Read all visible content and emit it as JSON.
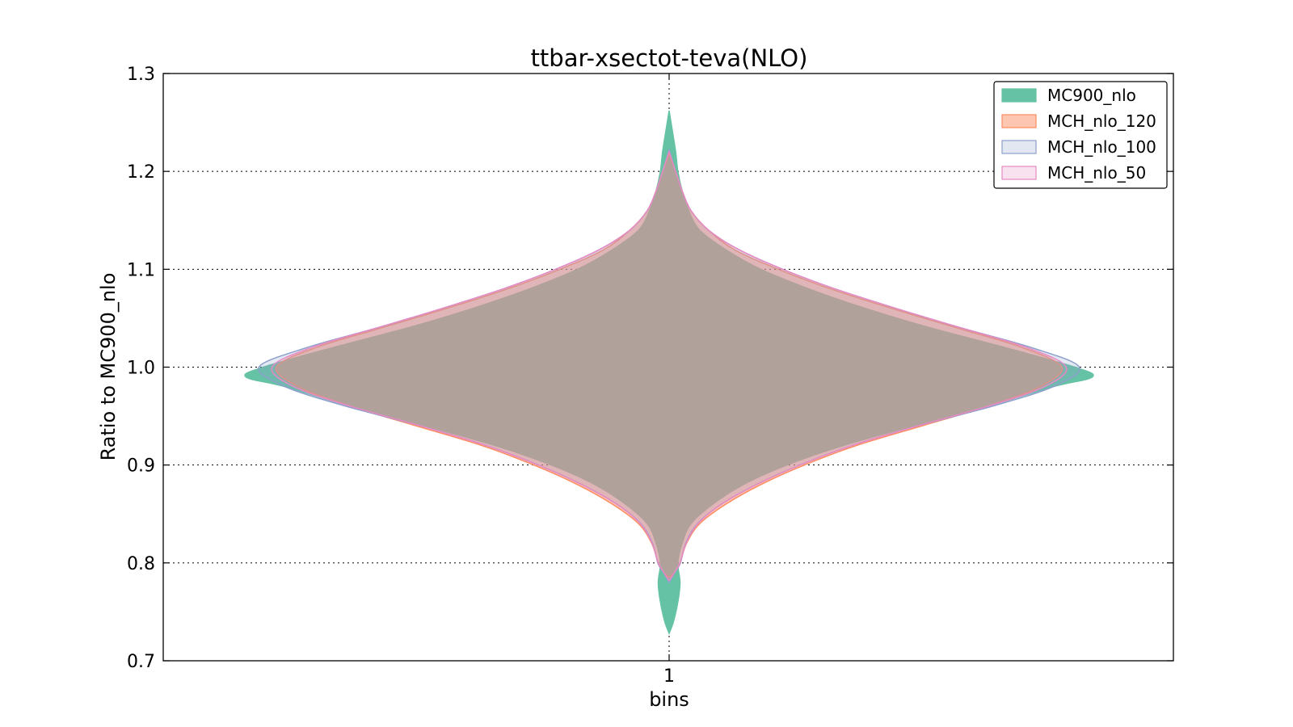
{
  "chart_data": {
    "type": "violin",
    "title": "ttbar-xsectot-teva(NLO)",
    "xlabel": "bins",
    "ylabel": "Ratio to MC900_nlo",
    "categories": [
      "1"
    ],
    "ylim": [
      0.7,
      1.3
    ],
    "yticks": [
      "0.7",
      "0.8",
      "0.9",
      "1.0",
      "1.1",
      "1.2",
      "1.3"
    ],
    "grid": true,
    "legend_position": "top-right",
    "series": [
      {
        "name": "MC900_nlo",
        "fill": "#66c2a5",
        "edge": "#66c2a5",
        "fill_opacity": 1.0,
        "profile": [
          [
            0.728,
            0.0
          ],
          [
            0.74,
            0.01
          ],
          [
            0.76,
            0.02
          ],
          [
            0.78,
            0.025
          ],
          [
            0.8,
            0.02
          ],
          [
            0.82,
            0.03
          ],
          [
            0.84,
            0.05
          ],
          [
            0.86,
            0.1
          ],
          [
            0.88,
            0.17
          ],
          [
            0.9,
            0.27
          ],
          [
            0.92,
            0.4
          ],
          [
            0.94,
            0.56
          ],
          [
            0.96,
            0.73
          ],
          [
            0.98,
            0.88
          ],
          [
            0.99,
            0.97
          ],
          [
            1.0,
            0.93
          ],
          [
            1.02,
            0.77
          ],
          [
            1.04,
            0.6
          ],
          [
            1.06,
            0.45
          ],
          [
            1.08,
            0.32
          ],
          [
            1.1,
            0.21
          ],
          [
            1.12,
            0.13
          ],
          [
            1.14,
            0.07
          ],
          [
            1.16,
            0.045
          ],
          [
            1.18,
            0.03
          ],
          [
            1.2,
            0.02
          ],
          [
            1.22,
            0.015
          ],
          [
            1.24,
            0.008
          ],
          [
            1.262,
            0.0
          ]
        ]
      },
      {
        "name": "MCH_nlo_120",
        "fill": "#fc8d62",
        "edge": "#fc8d62",
        "fill_opacity": 0.5,
        "profile": [
          [
            0.785,
            0.0
          ],
          [
            0.79,
            0.012
          ],
          [
            0.8,
            0.025
          ],
          [
            0.82,
            0.04
          ],
          [
            0.84,
            0.07
          ],
          [
            0.86,
            0.13
          ],
          [
            0.88,
            0.21
          ],
          [
            0.9,
            0.31
          ],
          [
            0.92,
            0.43
          ],
          [
            0.94,
            0.58
          ],
          [
            0.96,
            0.73
          ],
          [
            0.98,
            0.85
          ],
          [
            1.0,
            0.9
          ],
          [
            1.02,
            0.81
          ],
          [
            1.04,
            0.66
          ],
          [
            1.06,
            0.51
          ],
          [
            1.08,
            0.37
          ],
          [
            1.1,
            0.25
          ],
          [
            1.12,
            0.15
          ],
          [
            1.14,
            0.09
          ],
          [
            1.16,
            0.05
          ],
          [
            1.18,
            0.03
          ],
          [
            1.2,
            0.015
          ],
          [
            1.218,
            0.0
          ]
        ]
      },
      {
        "name": "MCH_nlo_100",
        "fill": "#8da0cb",
        "edge": "#8da0cb",
        "fill_opacity": 0.25,
        "profile": [
          [
            0.78,
            0.0
          ],
          [
            0.79,
            0.013
          ],
          [
            0.8,
            0.026
          ],
          [
            0.82,
            0.038
          ],
          [
            0.84,
            0.065
          ],
          [
            0.86,
            0.12
          ],
          [
            0.88,
            0.2
          ],
          [
            0.9,
            0.3
          ],
          [
            0.92,
            0.42
          ],
          [
            0.94,
            0.57
          ],
          [
            0.96,
            0.74
          ],
          [
            0.98,
            0.88
          ],
          [
            1.0,
            0.94
          ],
          [
            1.02,
            0.83
          ],
          [
            1.04,
            0.67
          ],
          [
            1.06,
            0.52
          ],
          [
            1.08,
            0.38
          ],
          [
            1.1,
            0.26
          ],
          [
            1.12,
            0.16
          ],
          [
            1.14,
            0.09
          ],
          [
            1.16,
            0.05
          ],
          [
            1.18,
            0.03
          ],
          [
            1.2,
            0.015
          ],
          [
            1.222,
            0.0
          ]
        ]
      },
      {
        "name": "MCH_nlo_50",
        "fill": "#e78ac3",
        "edge": "#e78ac3",
        "fill_opacity": 0.15,
        "profile": [
          [
            0.782,
            0.0
          ],
          [
            0.79,
            0.012
          ],
          [
            0.8,
            0.025
          ],
          [
            0.82,
            0.039
          ],
          [
            0.84,
            0.066
          ],
          [
            0.86,
            0.12
          ],
          [
            0.88,
            0.2
          ],
          [
            0.9,
            0.3
          ],
          [
            0.92,
            0.42
          ],
          [
            0.94,
            0.57
          ],
          [
            0.96,
            0.73
          ],
          [
            0.98,
            0.86
          ],
          [
            1.0,
            0.91
          ],
          [
            1.02,
            0.82
          ],
          [
            1.04,
            0.67
          ],
          [
            1.06,
            0.52
          ],
          [
            1.08,
            0.38
          ],
          [
            1.1,
            0.26
          ],
          [
            1.12,
            0.16
          ],
          [
            1.14,
            0.09
          ],
          [
            1.16,
            0.05
          ],
          [
            1.18,
            0.03
          ],
          [
            1.2,
            0.015
          ],
          [
            1.22,
            0.0
          ]
        ]
      }
    ]
  }
}
